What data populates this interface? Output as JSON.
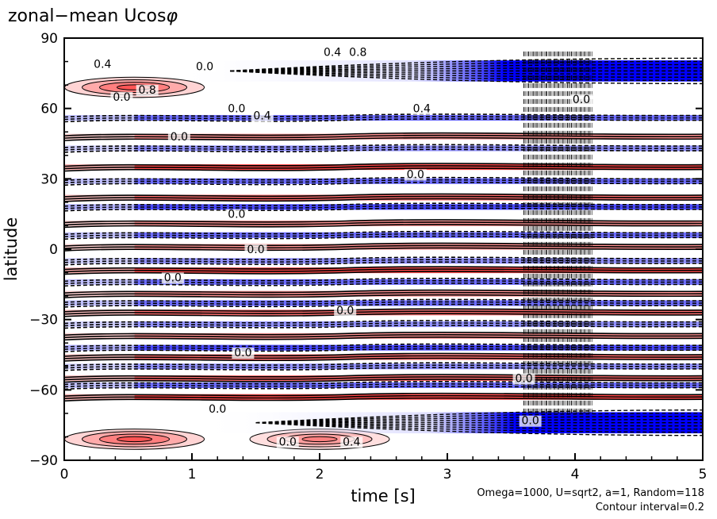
{
  "chart_data": {
    "type": "heatmap",
    "title": "zonal−mean Ucos",
    "title_symbol": "φ",
    "xlabel": "time [s]",
    "ylabel": "latitude",
    "xlim": [
      0,
      5
    ],
    "ylim": [
      -90,
      90
    ],
    "xticks": [
      "0",
      "1",
      "2",
      "3",
      "4",
      "5"
    ],
    "yticks": [
      "−90",
      "−60",
      "−30",
      "0",
      "30",
      "60",
      "90"
    ],
    "grid": false,
    "legend": "none",
    "colormap": {
      "negative": "#0000ff",
      "zero": "#ffffff",
      "positive": "#ff0000"
    },
    "contour_labels": [
      {
        "text": "0.4",
        "t": 2.1,
        "lat": 83
      },
      {
        "text": "0.8",
        "t": 2.3,
        "lat": 83
      },
      {
        "text": "0.4",
        "t": 0.3,
        "lat": 78
      },
      {
        "text": "0.0",
        "t": 1.1,
        "lat": 77
      },
      {
        "text": "0.0",
        "t": 0.45,
        "lat": 64
      },
      {
        "text": "0.8",
        "t": 0.65,
        "lat": 67
      },
      {
        "text": "0.0",
        "t": 1.35,
        "lat": 59
      },
      {
        "text": "0.4",
        "t": 1.55,
        "lat": 56
      },
      {
        "text": "0.4",
        "t": 2.8,
        "lat": 59
      },
      {
        "text": "0.0",
        "t": 4.05,
        "lat": 63
      },
      {
        "text": "0.0",
        "t": 0.9,
        "lat": 47
      },
      {
        "text": "0.0",
        "t": 2.75,
        "lat": 31
      },
      {
        "text": "0.0",
        "t": 1.35,
        "lat": 14
      },
      {
        "text": "0.0",
        "t": 1.5,
        "lat": -1
      },
      {
        "text": "0.0",
        "t": 0.85,
        "lat": -13
      },
      {
        "text": "0.0",
        "t": 1.4,
        "lat": -45
      },
      {
        "text": "0.0",
        "t": 2.2,
        "lat": -27
      },
      {
        "text": "0.0",
        "t": 1.2,
        "lat": -69
      },
      {
        "text": "0.0",
        "t": 1.75,
        "lat": -83
      },
      {
        "text": "0.4",
        "t": 2.25,
        "lat": -83
      },
      {
        "text": "0.0",
        "t": 3.6,
        "lat": -56
      },
      {
        "text": "0.0",
        "t": 3.65,
        "lat": -74
      }
    ],
    "structure": {
      "polar_jets": {
        "north": {
          "lat": 76,
          "sign": "negative",
          "min_value": -1.4,
          "onset_time": 2.5
        },
        "south": {
          "lat": -74,
          "sign": "negative",
          "min_value": -1.4,
          "onset_time": 2.7
        }
      },
      "early_positive_lobes": [
        {
          "lat": 69,
          "time": 0.55,
          "peak_value": 0.8
        },
        {
          "lat": -81,
          "time": 0.55,
          "peak_value": 0.8
        },
        {
          "lat": -81,
          "time": 2.0,
          "peak_value": 0.6
        }
      ],
      "zonal_bands": [
        {
          "lat": 56,
          "value": -0.8
        },
        {
          "lat": 48,
          "value": 0.6
        },
        {
          "lat": 43,
          "value": -0.6
        },
        {
          "lat": 35,
          "value": 1.0
        },
        {
          "lat": 29,
          "value": -0.8
        },
        {
          "lat": 22,
          "value": 0.8
        },
        {
          "lat": 18,
          "value": -1.0
        },
        {
          "lat": 11,
          "value": 0.6
        },
        {
          "lat": 6,
          "value": -0.8
        },
        {
          "lat": 1,
          "value": 0.6
        },
        {
          "lat": -5,
          "value": -0.6
        },
        {
          "lat": -9,
          "value": 1.0
        },
        {
          "lat": -14,
          "value": -0.8
        },
        {
          "lat": -19,
          "value": 0.6
        },
        {
          "lat": -23,
          "value": -0.8
        },
        {
          "lat": -27,
          "value": 0.8
        },
        {
          "lat": -32,
          "value": -0.6
        },
        {
          "lat": -37,
          "value": 0.6
        },
        {
          "lat": -42,
          "value": -1.0
        },
        {
          "lat": -46,
          "value": 0.8
        },
        {
          "lat": -50,
          "value": -0.6
        },
        {
          "lat": -55,
          "value": 0.8
        },
        {
          "lat": -58,
          "value": -0.8
        },
        {
          "lat": -63,
          "value": 1.0
        }
      ]
    }
  },
  "notes": {
    "params": "Omega=1000, U=sqrt2, a=1, Random=118",
    "contour": "Contour interval=0.2"
  }
}
